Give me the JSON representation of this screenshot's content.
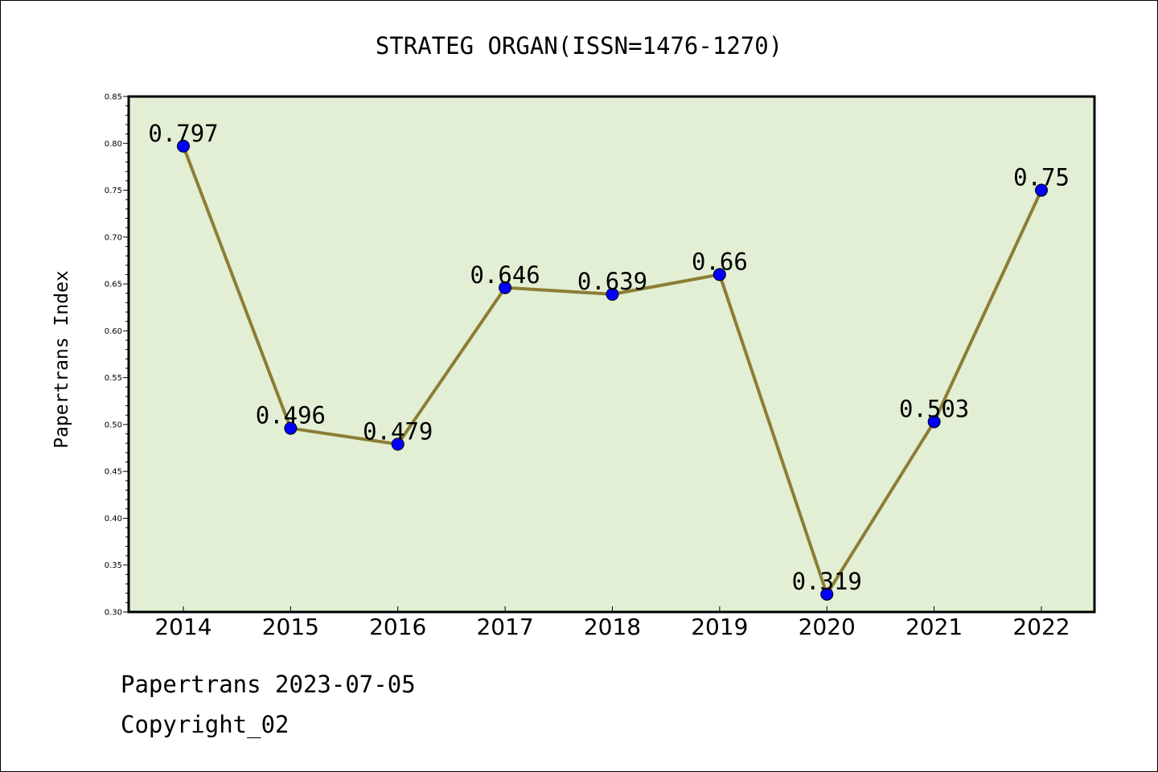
{
  "footer": {
    "line1": "Papertrans 2023-07-05",
    "line2": "Copyright_02"
  },
  "colors": {
    "plot_bg": "#e2efd5",
    "line": "#8c7d35",
    "marker": "#0000ff",
    "axis": "#000000"
  },
  "chart_data": {
    "type": "line",
    "title": "STRATEG ORGAN(ISSN=1476-1270)",
    "xlabel": "",
    "ylabel": "Papertrans Index",
    "categories": [
      "2014",
      "2015",
      "2016",
      "2017",
      "2018",
      "2019",
      "2020",
      "2021",
      "2022"
    ],
    "series": [
      {
        "values": [
          0.797,
          0.496,
          0.479,
          0.646,
          0.639,
          0.66,
          0.319,
          0.503,
          0.75
        ],
        "data_labels": [
          "0.797",
          "0.496",
          "0.479",
          "0.646",
          "0.639",
          "0.66",
          "0.319",
          "0.503",
          "0.75"
        ]
      }
    ],
    "ylim": [
      0.3,
      0.85
    ],
    "yticks": [
      "0.30",
      "0.35",
      "0.40",
      "0.45",
      "0.50",
      "0.55",
      "0.60",
      "0.65",
      "0.70",
      "0.75",
      "0.80",
      "0.85"
    ],
    "grid": false,
    "legend": "none"
  }
}
